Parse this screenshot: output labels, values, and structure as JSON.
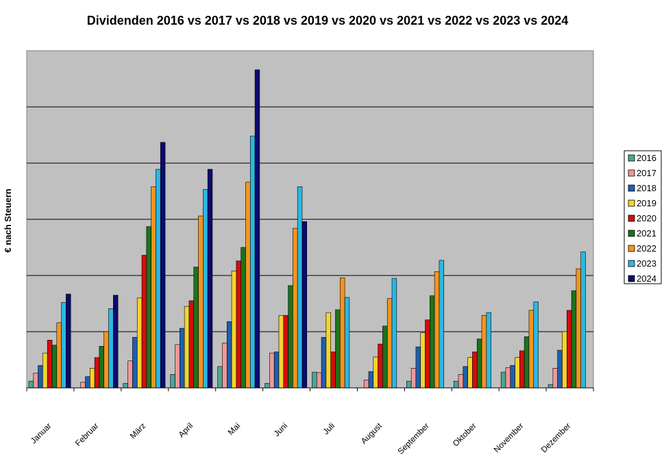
{
  "chart_data": {
    "type": "bar",
    "title": "Dividenden 2016 vs 2017 vs 2018 vs 2019 vs 2020 vs 2021 vs 2022 vs 2023 vs 2024",
    "ylabel": "€ nach Steuern",
    "xlabel": "",
    "ylim": [
      0,
      600
    ],
    "grid": true,
    "legend_position": "right",
    "background": "#c0c0c0",
    "categories": [
      "Januar",
      "Februar",
      "März",
      "April",
      "Mai",
      "Juni",
      "Juli",
      "August",
      "September",
      "Oktober",
      "November",
      "Dezember"
    ],
    "series": [
      {
        "name": "2016",
        "color": "#4aa597",
        "values": [
          12,
          0,
          8,
          24,
          38,
          8,
          28,
          0,
          12,
          12,
          28,
          6
        ]
      },
      {
        "name": "2017",
        "color": "#f09898",
        "values": [
          26,
          10,
          48,
          77,
          80,
          62,
          27,
          14,
          35,
          24,
          36,
          35
        ]
      },
      {
        "name": "2018",
        "color": "#1f5fb0",
        "values": [
          40,
          20,
          90,
          106,
          118,
          64,
          90,
          29,
          73,
          38,
          40,
          67
        ]
      },
      {
        "name": "2019",
        "color": "#f5d42c",
        "values": [
          62,
          35,
          160,
          145,
          208,
          129,
          134,
          55,
          98,
          54,
          54,
          100
        ]
      },
      {
        "name": "2020",
        "color": "#d40d0d",
        "values": [
          85,
          54,
          236,
          155,
          226,
          129,
          64,
          78,
          121,
          64,
          66,
          138
        ]
      },
      {
        "name": "2021",
        "color": "#1b741b",
        "values": [
          76,
          74,
          287,
          215,
          250,
          182,
          139,
          110,
          164,
          87,
          91,
          173
        ]
      },
      {
        "name": "2022",
        "color": "#f5941f",
        "values": [
          116,
          100,
          358,
          306,
          366,
          284,
          196,
          159,
          207,
          129,
          138,
          212
        ]
      },
      {
        "name": "2023",
        "color": "#2db7e0",
        "values": [
          152,
          141,
          389,
          353,
          448,
          358,
          161,
          195,
          227,
          134,
          153,
          242
        ]
      },
      {
        "name": "2024",
        "color": "#0b0b6e",
        "values": [
          167,
          165,
          437,
          389,
          566,
          296,
          null,
          null,
          null,
          null,
          null,
          null
        ]
      }
    ]
  }
}
